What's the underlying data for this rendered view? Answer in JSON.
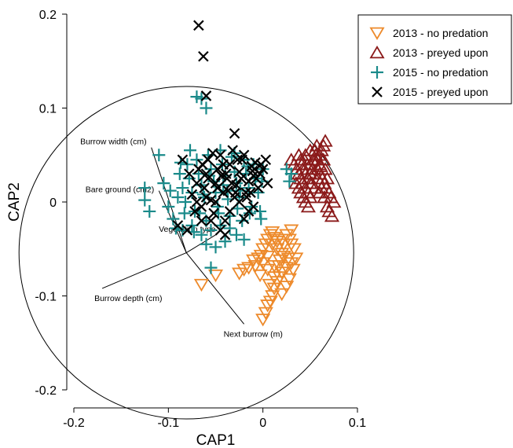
{
  "chart_data": {
    "type": "scatter",
    "xlabel": "CAP1",
    "ylabel": "CAP2",
    "xlim": [
      -0.2,
      0.1
    ],
    "ylim": [
      -0.2,
      0.2
    ],
    "x_ticks": [
      "-0.2",
      "-0.1",
      "0",
      "0.1"
    ],
    "y_ticks": [
      "-0.2",
      "-0.1",
      "0",
      "0.1",
      "0.2"
    ],
    "legend": {
      "placement": "top-right"
    },
    "correlation_circle": {
      "center": [
        -0.081,
        -0.054
      ],
      "radius": 0.177
    },
    "vectors": [
      {
        "label": "Burrow width (cm)",
        "end": [
          -0.118,
          0.058
        ]
      },
      {
        "label": "Bare ground (cm2)",
        "end": [
          -0.11,
          0.012
        ]
      },
      {
        "label": "Vegetation type",
        "end": [
          -0.05,
          -0.035
        ]
      },
      {
        "label": "Burrow depth (cm)",
        "end": [
          -0.17,
          -0.092
        ]
      },
      {
        "label": "Next burrow (m)",
        "end": [
          -0.02,
          -0.13
        ]
      }
    ],
    "series": [
      {
        "name": "2013 - no predation",
        "marker": "triangle-down",
        "color": "#ed8a2b",
        "points": [
          [
            -0.065,
            -0.088
          ],
          [
            -0.05,
            -0.078
          ],
          [
            -0.025,
            -0.076
          ],
          [
            -0.02,
            -0.072
          ],
          [
            -0.015,
            -0.07
          ],
          [
            -0.008,
            -0.068
          ],
          [
            -0.01,
            -0.062
          ],
          [
            -0.005,
            -0.06
          ],
          [
            -0.002,
            -0.057
          ],
          [
            0.0,
            -0.05
          ],
          [
            0.003,
            -0.045
          ],
          [
            0.005,
            -0.04
          ],
          [
            0.008,
            -0.035
          ],
          [
            0.01,
            -0.032
          ],
          [
            0.012,
            -0.038
          ],
          [
            0.015,
            -0.042
          ],
          [
            0.02,
            -0.04
          ],
          [
            0.025,
            -0.035
          ],
          [
            0.028,
            -0.04
          ],
          [
            0.03,
            -0.045
          ],
          [
            0.033,
            -0.05
          ],
          [
            0.035,
            -0.06
          ],
          [
            0.03,
            -0.065
          ],
          [
            0.025,
            -0.07
          ],
          [
            0.02,
            -0.075
          ],
          [
            0.018,
            -0.08
          ],
          [
            0.015,
            -0.085
          ],
          [
            0.012,
            -0.092
          ],
          [
            0.01,
            -0.1
          ],
          [
            0.008,
            -0.106
          ],
          [
            0.005,
            -0.11
          ],
          [
            0.003,
            -0.118
          ],
          [
            0.0,
            -0.125
          ],
          [
            0.02,
            -0.098
          ],
          [
            0.025,
            -0.09
          ],
          [
            0.028,
            -0.082
          ],
          [
            0.022,
            -0.058
          ],
          [
            0.018,
            -0.062
          ],
          [
            0.012,
            -0.068
          ],
          [
            0.005,
            -0.072
          ],
          [
            -0.003,
            -0.078
          ],
          [
            0.015,
            -0.05
          ],
          [
            0.02,
            -0.055
          ],
          [
            0.01,
            -0.045
          ],
          [
            0.027,
            -0.06
          ],
          [
            0.032,
            -0.072
          ],
          [
            0.005,
            -0.058
          ],
          [
            0.0,
            -0.065
          ],
          [
            0.012,
            -0.08
          ],
          [
            0.022,
            -0.045
          ],
          [
            0.03,
            -0.03
          ],
          [
            0.017,
            -0.068
          ],
          [
            0.007,
            -0.088
          ]
        ]
      },
      {
        "name": "2013 - preyed upon",
        "marker": "triangle-up",
        "color": "#8b1a1a",
        "points": [
          [
            0.03,
            0.045
          ],
          [
            0.033,
            0.04
          ],
          [
            0.036,
            0.035
          ],
          [
            0.038,
            0.03
          ],
          [
            0.04,
            0.025
          ],
          [
            0.042,
            0.02
          ],
          [
            0.045,
            0.015
          ],
          [
            0.048,
            0.01
          ],
          [
            0.05,
            0.005
          ],
          [
            0.035,
            0.02
          ],
          [
            0.038,
            0.015
          ],
          [
            0.04,
            0.01
          ],
          [
            0.043,
            0.005
          ],
          [
            0.045,
            0.0
          ],
          [
            0.048,
            -0.005
          ],
          [
            0.05,
            0.03
          ],
          [
            0.052,
            0.035
          ],
          [
            0.055,
            0.04
          ],
          [
            0.058,
            0.045
          ],
          [
            0.06,
            0.05
          ],
          [
            0.062,
            0.055
          ],
          [
            0.064,
            0.06
          ],
          [
            0.066,
            0.065
          ],
          [
            0.05,
            0.04
          ],
          [
            0.053,
            0.045
          ],
          [
            0.056,
            0.05
          ],
          [
            0.058,
            0.035
          ],
          [
            0.06,
            0.03
          ],
          [
            0.063,
            0.025
          ],
          [
            0.065,
            0.02
          ],
          [
            0.067,
            0.015
          ],
          [
            0.07,
            0.01
          ],
          [
            0.072,
            0.005
          ],
          [
            0.075,
            0.0
          ],
          [
            0.06,
            0.01
          ],
          [
            0.055,
            0.015
          ],
          [
            0.052,
            0.02
          ],
          [
            0.048,
            0.025
          ],
          [
            0.045,
            0.03
          ],
          [
            0.042,
            0.035
          ],
          [
            0.04,
            0.045
          ],
          [
            0.038,
            0.05
          ],
          [
            0.045,
            0.05
          ],
          [
            0.05,
            0.055
          ],
          [
            0.055,
            0.055
          ],
          [
            0.058,
            0.025
          ],
          [
            0.062,
            0.015
          ],
          [
            0.065,
            0.005
          ],
          [
            0.068,
            -0.005
          ],
          [
            0.07,
            -0.01
          ],
          [
            0.073,
            -0.015
          ],
          [
            0.055,
            0.045
          ],
          [
            0.053,
            0.03
          ],
          [
            0.05,
            0.02
          ],
          [
            0.047,
            0.04
          ],
          [
            0.044,
            0.045
          ],
          [
            0.041,
            0.04
          ],
          [
            0.06,
            0.04
          ],
          [
            0.064,
            0.045
          ],
          [
            0.068,
            0.025
          ],
          [
            0.066,
            0.035
          ],
          [
            0.057,
            0.06
          ],
          [
            0.061,
            0.038
          ]
        ]
      },
      {
        "name": "2015 - no predation",
        "marker": "plus",
        "color": "#1a8a8a",
        "points": [
          [
            -0.07,
            0.112
          ],
          [
            -0.065,
            0.11
          ],
          [
            -0.06,
            0.1
          ],
          [
            -0.11,
            0.05
          ],
          [
            -0.125,
            0.015
          ],
          [
            -0.125,
            0.002
          ],
          [
            -0.12,
            -0.01
          ],
          [
            -0.1,
            -0.005
          ],
          [
            -0.105,
            0.02
          ],
          [
            -0.098,
            0.012
          ],
          [
            -0.095,
            -0.018
          ],
          [
            -0.09,
            0.005
          ],
          [
            -0.088,
            0.03
          ],
          [
            -0.085,
            0.015
          ],
          [
            -0.082,
            0.0
          ],
          [
            -0.08,
            0.04
          ],
          [
            -0.078,
            0.025
          ],
          [
            -0.075,
            0.01
          ],
          [
            -0.072,
            -0.01
          ],
          [
            -0.07,
            0.045
          ],
          [
            -0.068,
            0.03
          ],
          [
            -0.065,
            0.018
          ],
          [
            -0.062,
            0.005
          ],
          [
            -0.06,
            -0.02
          ],
          [
            -0.058,
            0.05
          ],
          [
            -0.055,
            0.035
          ],
          [
            -0.052,
            0.022
          ],
          [
            -0.05,
            0.01
          ],
          [
            -0.048,
            -0.005
          ],
          [
            -0.045,
            0.055
          ],
          [
            -0.043,
            0.04
          ],
          [
            -0.04,
            0.028
          ],
          [
            -0.038,
            0.012
          ],
          [
            -0.035,
            -0.015
          ],
          [
            -0.033,
            0.048
          ],
          [
            -0.03,
            0.032
          ],
          [
            -0.028,
            0.02
          ],
          [
            -0.025,
            0.005
          ],
          [
            -0.022,
            -0.02
          ],
          [
            -0.02,
            0.045
          ],
          [
            -0.018,
            0.03
          ],
          [
            -0.015,
            0.015
          ],
          [
            -0.012,
            -0.005
          ],
          [
            -0.01,
            0.04
          ],
          [
            -0.008,
            0.025
          ],
          [
            -0.005,
            0.01
          ],
          [
            -0.003,
            -0.01
          ],
          [
            0.0,
            0.035
          ],
          [
            -0.092,
            -0.028
          ],
          [
            -0.085,
            -0.03
          ],
          [
            -0.075,
            -0.025
          ],
          [
            -0.065,
            -0.035
          ],
          [
            -0.055,
            -0.03
          ],
          [
            -0.045,
            -0.025
          ],
          [
            -0.035,
            -0.028
          ],
          [
            -0.028,
            -0.035
          ],
          [
            -0.02,
            -0.04
          ],
          [
            -0.055,
            -0.07
          ],
          [
            -0.06,
            -0.045
          ],
          [
            -0.05,
            -0.048
          ],
          [
            -0.04,
            -0.042
          ],
          [
            -0.03,
            0.052
          ],
          [
            -0.016,
            0.038
          ],
          [
            -0.001,
            0.022
          ],
          [
            -0.087,
            0.042
          ],
          [
            -0.077,
            0.055
          ],
          [
            -0.063,
            0.008
          ],
          [
            -0.042,
            0.018
          ],
          [
            -0.024,
            0.012
          ],
          [
            -0.014,
            -0.012
          ],
          [
            0.03,
            0.03
          ],
          [
            0.025,
            0.035
          ],
          [
            -0.002,
            -0.018
          ],
          [
            0.028,
            0.022
          ],
          [
            -0.067,
            -0.012
          ],
          [
            -0.057,
            0.028
          ],
          [
            -0.047,
            -0.012
          ],
          [
            -0.037,
            0.003
          ],
          [
            -0.027,
            -0.007
          ],
          [
            -0.083,
            -0.012
          ],
          [
            -0.073,
            -0.032
          ]
        ]
      },
      {
        "name": "2015 - preyed upon",
        "marker": "x",
        "color": "#000000",
        "points": [
          [
            -0.068,
            0.188
          ],
          [
            -0.063,
            0.155
          ],
          [
            -0.06,
            0.113
          ],
          [
            -0.03,
            0.073
          ],
          [
            -0.085,
            0.045
          ],
          [
            -0.078,
            0.03
          ],
          [
            -0.075,
            0.008
          ],
          [
            -0.072,
            -0.01
          ],
          [
            -0.07,
            0.02
          ],
          [
            -0.068,
            0.035
          ],
          [
            -0.065,
            -0.005
          ],
          [
            -0.062,
            0.015
          ],
          [
            -0.06,
            0.03
          ],
          [
            -0.058,
            0.045
          ],
          [
            -0.055,
            0.002
          ],
          [
            -0.052,
            -0.012
          ],
          [
            -0.05,
            0.02
          ],
          [
            -0.048,
            0.035
          ],
          [
            -0.045,
            0.05
          ],
          [
            -0.042,
            0.01
          ],
          [
            -0.04,
            -0.02
          ],
          [
            -0.038,
            0.025
          ],
          [
            -0.035,
            0.04
          ],
          [
            -0.032,
            0.055
          ],
          [
            -0.03,
            0.005
          ],
          [
            -0.028,
            0.018
          ],
          [
            -0.025,
            0.032
          ],
          [
            -0.022,
            0.045
          ],
          [
            -0.02,
            0.05
          ],
          [
            -0.018,
            0.01
          ],
          [
            -0.015,
            0.022
          ],
          [
            -0.012,
            0.038
          ],
          [
            -0.01,
            0.028
          ],
          [
            -0.008,
            0.042
          ],
          [
            -0.005,
            0.015
          ],
          [
            -0.003,
            0.03
          ],
          [
            0.0,
            0.035
          ],
          [
            0.003,
            0.045
          ],
          [
            0.005,
            0.02
          ],
          [
            -0.01,
            -0.005
          ],
          [
            -0.015,
            -0.01
          ],
          [
            -0.02,
            -0.018
          ],
          [
            -0.025,
            0.0
          ],
          [
            -0.035,
            -0.01
          ],
          [
            -0.045,
            -0.03
          ],
          [
            -0.04,
            -0.035
          ],
          [
            -0.055,
            -0.02
          ],
          [
            -0.065,
            -0.02
          ],
          [
            -0.08,
            -0.03
          ],
          [
            -0.09,
            -0.025
          ],
          [
            -0.07,
            0.0
          ],
          [
            -0.06,
            0.005
          ],
          [
            -0.05,
            0.0
          ],
          [
            -0.042,
            0.04
          ],
          [
            -0.037,
            0.012
          ],
          [
            -0.027,
            0.045
          ],
          [
            -0.023,
            0.025
          ],
          [
            -0.017,
            0.005
          ],
          [
            -0.013,
            0.01
          ],
          [
            -0.007,
            0.025
          ],
          [
            -0.002,
            0.04
          ],
          [
            -0.058,
            0.025
          ],
          [
            -0.048,
            0.015
          ],
          [
            -0.033,
            0.02
          ],
          [
            -0.011,
            0.033
          ],
          [
            -0.064,
            0.04
          ],
          [
            -0.053,
            0.052
          ],
          [
            -0.044,
            0.028
          ],
          [
            -0.039,
            0.03
          ],
          [
            -0.029,
            0.01
          ]
        ]
      }
    ]
  }
}
